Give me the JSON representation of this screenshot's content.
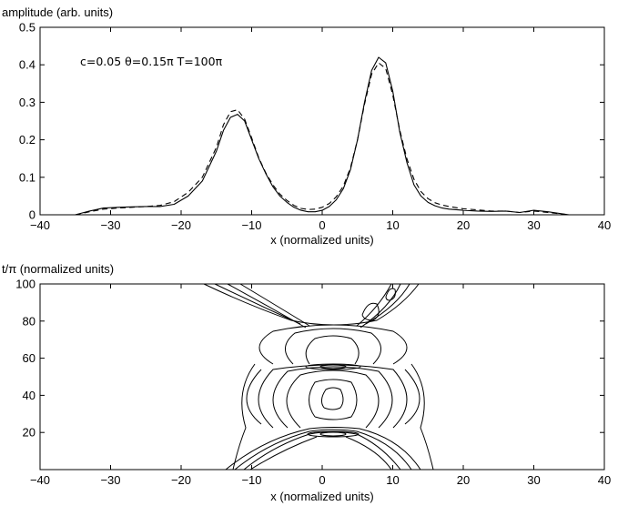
{
  "chart_data": [
    {
      "type": "line",
      "ylabel": "amplitude (arb. units)",
      "xlabel": "x (normalized units)",
      "annotation": "c=0.05   θ=0.15π  T=100π",
      "xlim": [
        -40,
        40
      ],
      "ylim": [
        0,
        0.5
      ],
      "xticks": [
        -40,
        -30,
        -20,
        -10,
        0,
        10,
        20,
        30,
        40
      ],
      "yticks": [
        0,
        0.1,
        0.2,
        0.3,
        0.4,
        0.5
      ],
      "ytick_labels": [
        "0",
        "0.1",
        "0.2",
        "0.3",
        "0.4",
        "0.5"
      ],
      "grid": false,
      "series": [
        {
          "style": "solid",
          "x": [
            -35,
            -33,
            -31,
            -29,
            -27,
            -25,
            -23,
            -21,
            -19,
            -17,
            -15,
            -14,
            -13,
            -12,
            -11,
            -10,
            -9,
            -8,
            -7,
            -6,
            -5,
            -4,
            -3,
            -2,
            -1,
            0,
            1,
            2,
            3,
            4,
            5,
            6,
            7,
            8,
            9,
            10,
            11,
            12,
            13,
            14,
            15,
            16,
            17,
            18,
            20,
            22,
            24,
            26,
            28,
            30,
            32,
            35
          ],
          "y": [
            0.0,
            0.01,
            0.018,
            0.02,
            0.021,
            0.022,
            0.022,
            0.028,
            0.05,
            0.09,
            0.17,
            0.225,
            0.26,
            0.268,
            0.25,
            0.2,
            0.15,
            0.11,
            0.075,
            0.05,
            0.033,
            0.02,
            0.012,
            0.008,
            0.008,
            0.012,
            0.022,
            0.04,
            0.07,
            0.12,
            0.2,
            0.3,
            0.385,
            0.42,
            0.405,
            0.33,
            0.22,
            0.14,
            0.08,
            0.05,
            0.033,
            0.024,
            0.018,
            0.015,
            0.012,
            0.01,
            0.009,
            0.01,
            0.006,
            0.012,
            0.008,
            0.0
          ]
        },
        {
          "style": "dashed",
          "x": [
            -35,
            -33,
            -31,
            -29,
            -27,
            -25,
            -23,
            -21,
            -19,
            -17,
            -15,
            -14,
            -13,
            -12,
            -11,
            -10,
            -9,
            -8,
            -7,
            -6,
            -5,
            -4,
            -3,
            -2,
            -1,
            0,
            1,
            2,
            3,
            4,
            5,
            6,
            7,
            8,
            9,
            10,
            11,
            12,
            13,
            14,
            15,
            16,
            17,
            18,
            20,
            22,
            24,
            26,
            28,
            30,
            32,
            35
          ],
          "y": [
            0.0,
            0.008,
            0.015,
            0.018,
            0.02,
            0.022,
            0.025,
            0.035,
            0.06,
            0.1,
            0.18,
            0.24,
            0.275,
            0.28,
            0.255,
            0.205,
            0.152,
            0.112,
            0.08,
            0.055,
            0.038,
            0.025,
            0.017,
            0.014,
            0.015,
            0.02,
            0.03,
            0.048,
            0.077,
            0.125,
            0.2,
            0.295,
            0.375,
            0.405,
            0.39,
            0.32,
            0.225,
            0.15,
            0.095,
            0.062,
            0.043,
            0.032,
            0.026,
            0.022,
            0.016,
            0.013,
            0.01,
            0.01,
            0.006,
            0.01,
            0.006,
            0.0
          ]
        }
      ]
    },
    {
      "type": "contour",
      "ylabel": "t/π (normalized units)",
      "xlabel": "x (normalized units)",
      "xlim": [
        -40,
        40
      ],
      "ylim": [
        0,
        100
      ],
      "xticks": [
        -40,
        -30,
        -20,
        -10,
        0,
        10,
        20,
        30,
        40
      ],
      "yticks": [
        20,
        40,
        60,
        80,
        100
      ],
      "grid": false,
      "note": "Contour lines approximated: collision structure with foci near t=20π and t=55π around x≈0–2, wings radiating outward."
    }
  ]
}
